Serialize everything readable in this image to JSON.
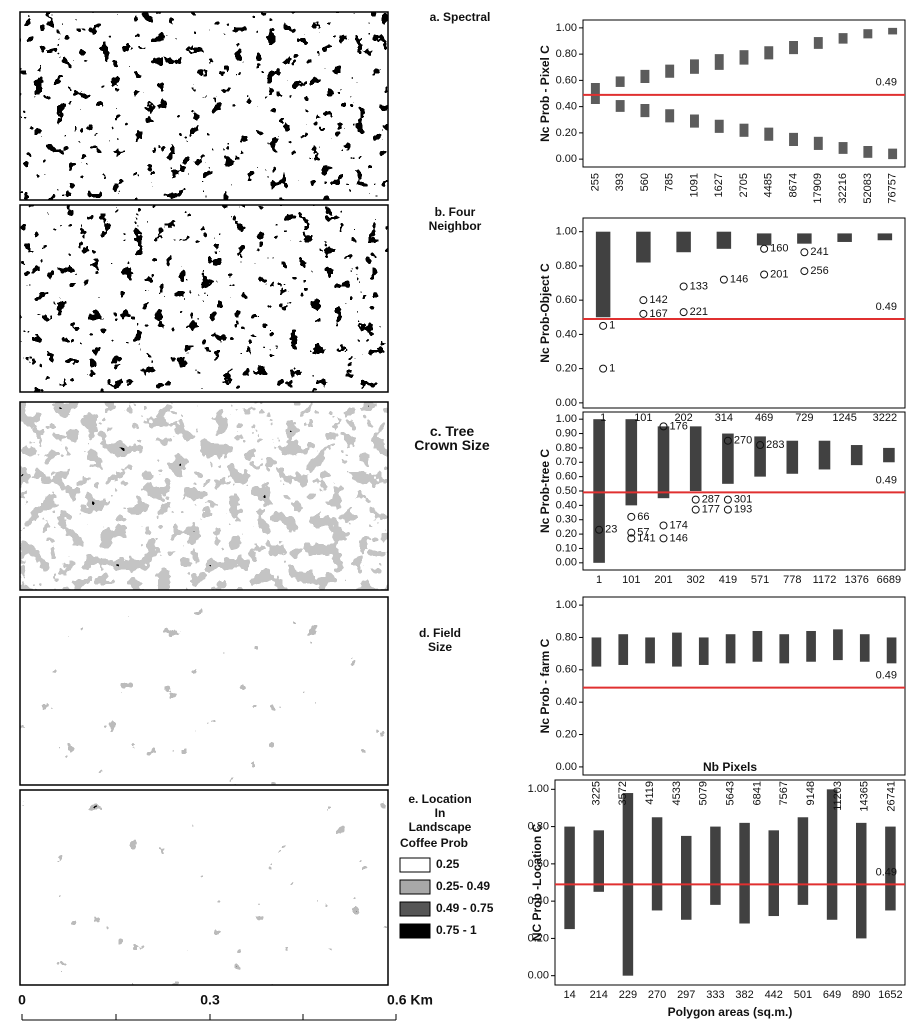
{
  "panels": [
    {
      "label": "a. Spectral"
    },
    {
      "label": "b. Four\nNeighbor"
    },
    {
      "label": "c. Tree\nCrown Size"
    },
    {
      "label": "d. Field\nSize"
    },
    {
      "label": "e. Location\nIn\nLandscape"
    }
  ],
  "legend": {
    "title": "Coffee Prob",
    "items": [
      {
        "label": "0.25",
        "color": "#ffffff"
      },
      {
        "label": "0.25- 0.49",
        "color": "#a8a8a8"
      },
      {
        "label": "0.49 - 0.75",
        "color": "#555555"
      },
      {
        "label": "0.75 - 1",
        "color": "#000000"
      }
    ]
  },
  "scale_bar": {
    "labels": [
      "0",
      "0.3",
      "0.6 Km"
    ]
  },
  "chart_data": [
    {
      "type": "range",
      "y_label": "Nc Prob - Pixel C",
      "rotate_xticks": true,
      "categories": [
        "255",
        "393",
        "560",
        "785",
        "1091",
        "1627",
        "2705",
        "4485",
        "8674",
        "17909",
        "32216",
        "52083",
        "76757"
      ],
      "series": [
        {
          "color": "#333333",
          "low": [
            0.5,
            0.55,
            0.58,
            0.62,
            0.65,
            0.68,
            0.72,
            0.76,
            0.8,
            0.84,
            0.88,
            0.92,
            0.95
          ],
          "high": [
            0.58,
            0.63,
            0.68,
            0.72,
            0.76,
            0.8,
            0.83,
            0.86,
            0.9,
            0.93,
            0.96,
            0.99,
            1.0
          ]
        },
        {
          "color": "#333333",
          "low": [
            0.42,
            0.36,
            0.32,
            0.28,
            0.24,
            0.2,
            0.17,
            0.14,
            0.1,
            0.07,
            0.04,
            0.01,
            0.0
          ],
          "high": [
            0.5,
            0.45,
            0.42,
            0.38,
            0.34,
            0.3,
            0.27,
            0.24,
            0.2,
            0.17,
            0.13,
            0.1,
            0.08
          ]
        }
      ],
      "ylim": [
        -0.06,
        1.06
      ],
      "yticks": [
        {
          "value": 0,
          "label": "0.00"
        },
        {
          "value": 0.2,
          "label": "0.20"
        },
        {
          "value": 0.4,
          "label": "0.40"
        },
        {
          "value": 0.6,
          "label": "0.60"
        },
        {
          "value": 0.8,
          "label": "0.80"
        },
        {
          "value": 1,
          "label": "1.00"
        }
      ],
      "refline": {
        "value": 0.49,
        "color": "#e03030"
      },
      "outliers": []
    },
    {
      "type": "range",
      "y_label": "Nc  Prob-Object  C",
      "rotate_xticks": false,
      "categories": [
        "1",
        "101",
        "202",
        "314",
        "469",
        "729",
        "1245",
        "3222"
      ],
      "series": [
        {
          "color": "#111111",
          "low": [
            0.5,
            0.82,
            0.88,
            0.9,
            0.92,
            0.93,
            0.94,
            0.95
          ],
          "high": [
            1.0,
            1.0,
            1.0,
            1.0,
            0.99,
            0.99,
            0.99,
            0.99
          ]
        }
      ],
      "ylim": [
        -0.03,
        1.08
      ],
      "yticks": [
        {
          "value": 0,
          "label": "0.00"
        },
        {
          "value": 0.2,
          "label": "0.20"
        },
        {
          "value": 0.4,
          "label": "0.40"
        },
        {
          "value": 0.6,
          "label": "0.60"
        },
        {
          "value": 0.8,
          "label": "0.80"
        },
        {
          "value": 1,
          "label": "1.00"
        }
      ],
      "refline": {
        "value": 0.49,
        "color": "#e03030"
      },
      "outliers": [
        {
          "x": "1",
          "y": 0.2,
          "id": 1
        },
        {
          "x": "1",
          "y": 0.45,
          "id": 1
        },
        {
          "x": "101",
          "y": 0.52,
          "id": 167
        },
        {
          "x": "101",
          "y": 0.6,
          "id": 142
        },
        {
          "x": "202",
          "y": 0.53,
          "id": 221
        },
        {
          "x": "202",
          "y": 0.68,
          "id": 133
        },
        {
          "x": "314",
          "y": 0.72,
          "id": 146
        },
        {
          "x": "469",
          "y": 0.75,
          "id": 201
        },
        {
          "x": "729",
          "y": 0.77,
          "id": 256
        },
        {
          "x": "469",
          "y": 0.9,
          "id": 160
        },
        {
          "x": "729",
          "y": 0.88,
          "id": 241
        }
      ]
    },
    {
      "type": "range",
      "y_label": "Nc Prob-tree C",
      "rotate_xticks": false,
      "categories": [
        "1",
        "101",
        "201",
        "302",
        "419",
        "571",
        "778",
        "1172",
        "1376",
        "6689"
      ],
      "series": [
        {
          "color": "#111111",
          "low": [
            0.0,
            0.4,
            0.45,
            0.5,
            0.55,
            0.6,
            0.62,
            0.65,
            0.68,
            0.7
          ],
          "high": [
            1.0,
            1.0,
            0.95,
            0.95,
            0.9,
            0.88,
            0.85,
            0.85,
            0.82,
            0.8
          ]
        }
      ],
      "ylim": [
        -0.05,
        1.05
      ],
      "yticks": [
        {
          "value": 0,
          "label": "0.00"
        },
        {
          "value": 0.1,
          "label": "0.10"
        },
        {
          "value": 0.2,
          "label": "0.20"
        },
        {
          "value": 0.3,
          "label": "0.30"
        },
        {
          "value": 0.4,
          "label": "0.40"
        },
        {
          "value": 0.5,
          "label": "0.50"
        },
        {
          "value": 0.6,
          "label": "0.60"
        },
        {
          "value": 0.7,
          "label": "0.70"
        },
        {
          "value": 0.8,
          "label": "0.80"
        },
        {
          "value": 0.9,
          "label": "0.90"
        },
        {
          "value": 1,
          "label": "1.00"
        }
      ],
      "refline": {
        "value": 0.49,
        "color": "#e03030"
      },
      "outliers": [
        {
          "x": "201",
          "y": 0.95,
          "id": 176
        },
        {
          "x": "419",
          "y": 0.85,
          "id": 270
        },
        {
          "x": "571",
          "y": 0.82,
          "id": 283
        },
        {
          "x": "302",
          "y": 0.44,
          "id": 287
        },
        {
          "x": "419",
          "y": 0.44,
          "id": 301
        },
        {
          "x": "302",
          "y": 0.37,
          "id": 177
        },
        {
          "x": "419",
          "y": 0.37,
          "id": 193
        },
        {
          "x": "201",
          "y": 0.26,
          "id": 174
        },
        {
          "x": "101",
          "y": 0.17,
          "id": 141
        },
        {
          "x": "201",
          "y": 0.17,
          "id": 146
        },
        {
          "x": "101",
          "y": 0.21,
          "id": 57
        },
        {
          "x": "1",
          "y": 0.23,
          "id": 23
        },
        {
          "x": "101",
          "y": 0.32,
          "id": 66
        }
      ]
    },
    {
      "type": "range",
      "y_label": "Nc  Prob - farm  C",
      "rotate_xticks": true,
      "categories": [
        "3225",
        "3572",
        "4119",
        "4533",
        "5079",
        "5643",
        "6841",
        "7567",
        "9148",
        "11203",
        "14365",
        "26741"
      ],
      "series": [
        {
          "color": "#111111",
          "low": [
            0.62,
            0.63,
            0.64,
            0.62,
            0.63,
            0.64,
            0.65,
            0.64,
            0.65,
            0.66,
            0.65,
            0.64
          ],
          "high": [
            0.8,
            0.82,
            0.8,
            0.83,
            0.8,
            0.82,
            0.84,
            0.82,
            0.84,
            0.85,
            0.82,
            0.8
          ]
        }
      ],
      "ylim": [
        -0.05,
        1.05
      ],
      "yticks": [
        {
          "value": 0,
          "label": "0.00"
        },
        {
          "value": 0.2,
          "label": "0.20"
        },
        {
          "value": 0.4,
          "label": "0.40"
        },
        {
          "value": 0.6,
          "label": "0.60"
        },
        {
          "value": 0.8,
          "label": "0.80"
        },
        {
          "value": 1,
          "label": "1.00"
        }
      ],
      "refline": {
        "value": 0.49,
        "color": "#e03030"
      },
      "outliers": []
    },
    {
      "type": "range",
      "title": "Nb Pixels",
      "x_label": "Polygon areas (sq.m.)",
      "y_label": "NC  Prob -Location  C",
      "rotate_xticks": false,
      "categories": [
        "14",
        "214",
        "229",
        "270",
        "297",
        "333",
        "382",
        "442",
        "501",
        "649",
        "890",
        "1652"
      ],
      "series": [
        {
          "color": "#111111",
          "low": [
            0.25,
            0.45,
            0.0,
            0.35,
            0.3,
            0.38,
            0.28,
            0.32,
            0.38,
            0.3,
            0.2,
            0.35
          ],
          "high": [
            0.8,
            0.78,
            0.98,
            0.85,
            0.75,
            0.8,
            0.82,
            0.78,
            0.85,
            1.0,
            0.82,
            0.8
          ]
        }
      ],
      "ylim": [
        -0.05,
        1.05
      ],
      "yticks": [
        {
          "value": 0,
          "label": "0.00"
        },
        {
          "value": 0.2,
          "label": "0.20"
        },
        {
          "value": 0.4,
          "label": "0.40"
        },
        {
          "value": 0.6,
          "label": "0.60"
        },
        {
          "value": 0.8,
          "label": "0.80"
        },
        {
          "value": 1,
          "label": "1.00"
        }
      ],
      "refline": {
        "value": 0.49,
        "color": "#e03030"
      },
      "outliers": []
    }
  ]
}
